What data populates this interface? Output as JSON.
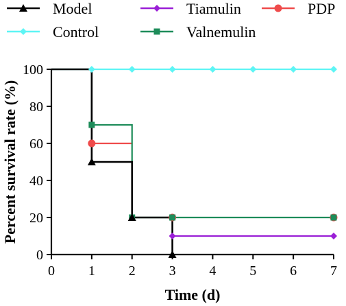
{
  "chart_data": {
    "type": "line",
    "step": true,
    "xlabel": "Time (d)",
    "ylabel": "Percent survival rate (%)",
    "xlim": [
      0,
      7
    ],
    "ylim": [
      0,
      100
    ],
    "x_ticks": [
      0,
      1,
      2,
      3,
      4,
      5,
      6,
      7
    ],
    "y_ticks": [
      0,
      20,
      40,
      60,
      80,
      100
    ],
    "grid": false,
    "legend_position": "top",
    "series": [
      {
        "name": "Model",
        "color": "#000000",
        "marker": "triangle",
        "points": [
          [
            0,
            100
          ],
          [
            1,
            100
          ],
          [
            1,
            50
          ],
          [
            2,
            50
          ],
          [
            2,
            20
          ],
          [
            3,
            20
          ],
          [
            3,
            0
          ]
        ],
        "markers": [
          [
            1,
            50
          ],
          [
            2,
            20
          ],
          [
            3,
            0
          ]
        ]
      },
      {
        "name": "Control",
        "color": "#5ef5f5",
        "marker": "diamond",
        "points": [
          [
            0,
            100
          ],
          [
            7,
            100
          ]
        ],
        "markers": [
          [
            1,
            100
          ],
          [
            2,
            100
          ],
          [
            3,
            100
          ],
          [
            4,
            100
          ],
          [
            5,
            100
          ],
          [
            6,
            100
          ],
          [
            7,
            100
          ]
        ]
      },
      {
        "name": "Tiamulin",
        "color": "#9a1fd6",
        "marker": "diamond",
        "points": [
          [
            3,
            10
          ],
          [
            7,
            10
          ]
        ],
        "markers": [
          [
            3,
            10
          ],
          [
            7,
            10
          ]
        ]
      },
      {
        "name": "Valnemulin",
        "color": "#1e8c5a",
        "marker": "square",
        "points": [
          [
            1,
            100
          ],
          [
            1,
            70
          ],
          [
            2,
            70
          ],
          [
            2,
            20
          ],
          [
            7,
            20
          ]
        ],
        "markers": [
          [
            1,
            70
          ],
          [
            2,
            20
          ],
          [
            3,
            20
          ],
          [
            7,
            20
          ]
        ]
      },
      {
        "name": "PDP",
        "color": "#ef4b4b",
        "marker": "circle",
        "points": [
          [
            1,
            60
          ],
          [
            2,
            60
          ]
        ],
        "markers": [
          [
            1,
            60
          ],
          [
            3,
            20
          ],
          [
            7,
            20
          ]
        ]
      }
    ]
  }
}
